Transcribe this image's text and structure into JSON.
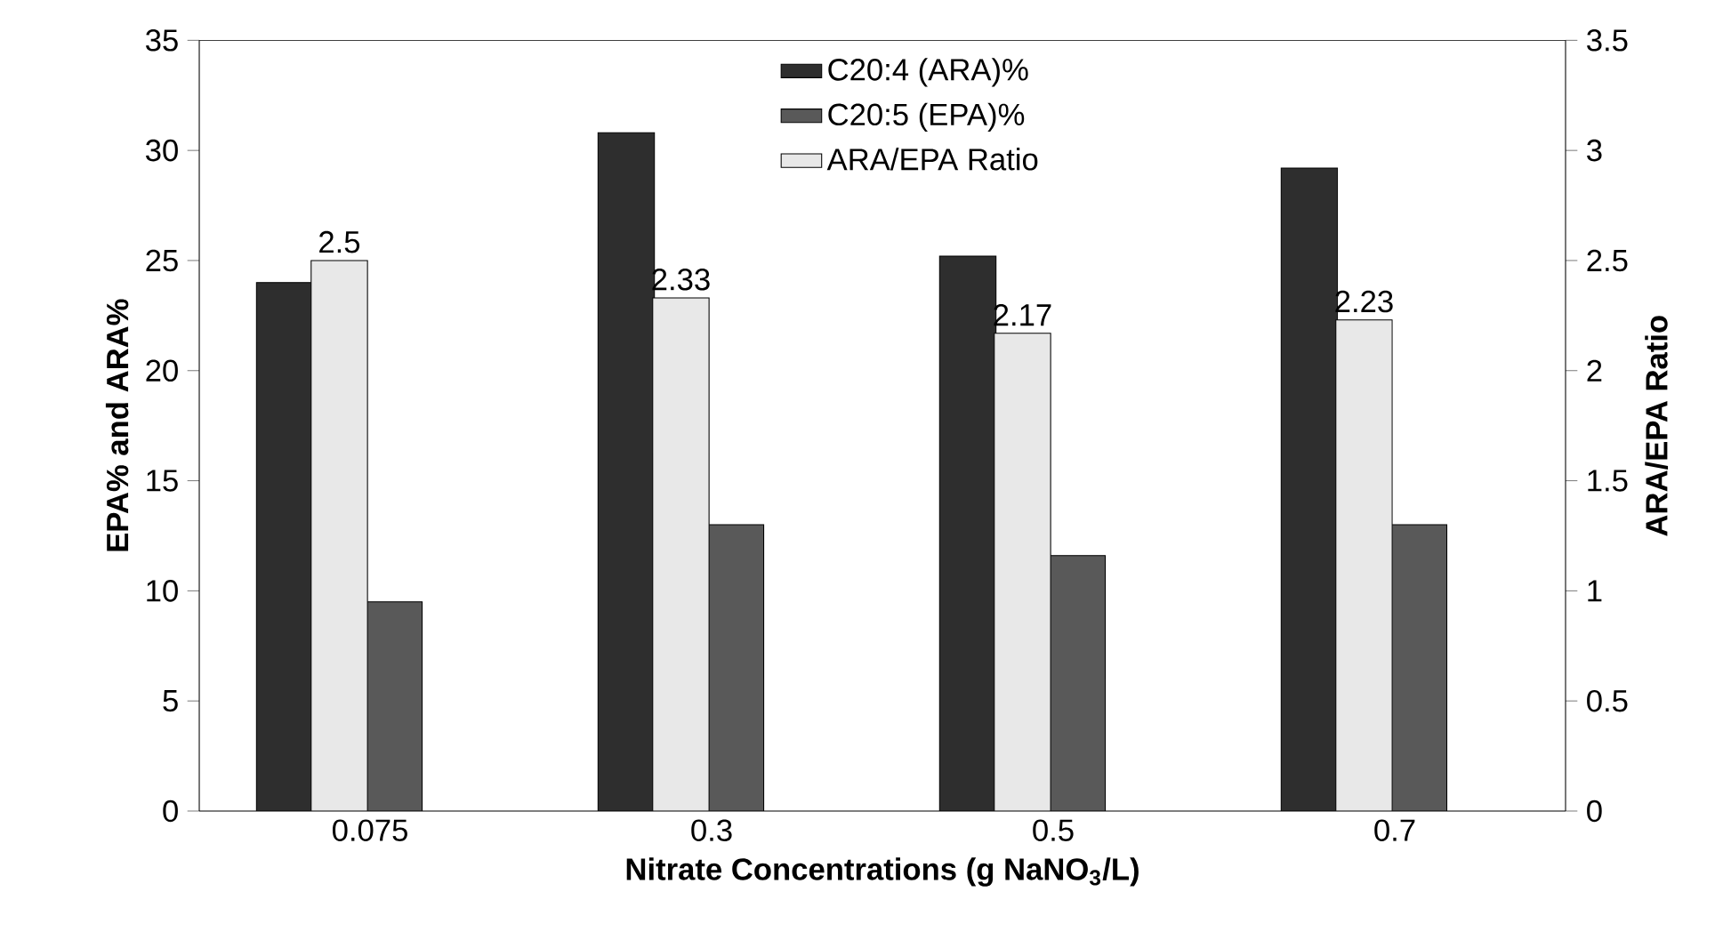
{
  "chart_data": {
    "type": "bar",
    "xlabel": "Nitrate Concentrations (g NaNO$_{3}$/L)",
    "ylabel": "EPA% and ARA%",
    "y2label": "ARA/EPA Ratio",
    "categories": [
      "0.075",
      "0.3",
      "0.5",
      "0.7"
    ],
    "series": [
      {
        "name": "C20:4 (ARA)%",
        "color": "#2e2e2e",
        "values": [
          24.0,
          30.8,
          25.2,
          29.2
        ]
      },
      {
        "name": "C20:5 (EPA)%",
        "color": "#595959",
        "values": [
          9.5,
          13.0,
          11.6,
          13.0
        ]
      },
      {
        "name": "ARA/EPA Ratio",
        "color": "#e8e8e8",
        "axis": "y2",
        "values": [
          2.5,
          2.33,
          2.17,
          2.23
        ],
        "value_labels": [
          "2.5",
          "2.33",
          "2.17",
          "2.23"
        ]
      }
    ],
    "ylim": [
      0,
      35
    ],
    "yticks": [
      0,
      5,
      10,
      15,
      20,
      25,
      30,
      35
    ],
    "y2lim": [
      0,
      3.5
    ],
    "y2ticks": [
      0,
      0.5,
      1,
      1.5,
      2,
      2.5,
      3,
      3.5
    ],
    "grid": false,
    "legend": "top"
  }
}
